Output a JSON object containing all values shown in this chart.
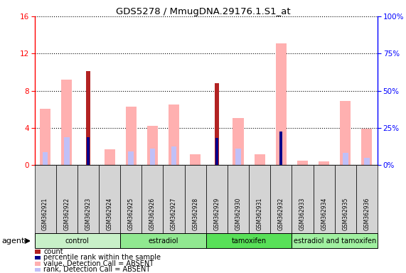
{
  "title": "GDS5278 / MmugDNA.29176.1.S1_at",
  "samples": [
    "GSM362921",
    "GSM362922",
    "GSM362923",
    "GSM362924",
    "GSM362925",
    "GSM362926",
    "GSM362927",
    "GSM362928",
    "GSM362929",
    "GSM362930",
    "GSM362931",
    "GSM362932",
    "GSM362933",
    "GSM362934",
    "GSM362935",
    "GSM362936"
  ],
  "count": [
    0,
    0,
    10.1,
    0,
    0,
    0,
    0,
    0,
    8.8,
    0,
    0,
    0,
    0,
    0,
    0,
    0
  ],
  "percentile": [
    0,
    0,
    3.0,
    0,
    0,
    0,
    0,
    0,
    2.9,
    0,
    0,
    3.6,
    0,
    0,
    0,
    0
  ],
  "value_absent": [
    6.1,
    9.2,
    0,
    1.7,
    6.3,
    4.2,
    6.5,
    1.2,
    0,
    5.1,
    1.2,
    13.1,
    0.5,
    0.4,
    6.9,
    3.9
  ],
  "rank_absent": [
    1.4,
    3.0,
    0,
    0,
    1.5,
    1.8,
    2.0,
    0,
    0,
    1.8,
    0,
    0,
    0,
    0,
    1.3,
    0.8
  ],
  "groups": [
    {
      "label": "control",
      "start": 0,
      "end": 4,
      "color": "#c8f0c8"
    },
    {
      "label": "estradiol",
      "start": 4,
      "end": 8,
      "color": "#90e890"
    },
    {
      "label": "tamoxifen",
      "start": 8,
      "end": 12,
      "color": "#58e058"
    },
    {
      "label": "estradiol and tamoxifen",
      "start": 12,
      "end": 16,
      "color": "#a0f0a0"
    }
  ],
  "ylim_left": [
    0,
    16
  ],
  "ylim_right": [
    0,
    100
  ],
  "yticks_left": [
    0,
    4,
    8,
    12,
    16
  ],
  "yticks_right": [
    0,
    25,
    50,
    75,
    100
  ],
  "bar_width": 0.5,
  "color_count": "#b22222",
  "color_percentile": "#00008b",
  "color_value_absent": "#ffb0b0",
  "color_rank_absent": "#c0c0f8",
  "legend_items": [
    {
      "color": "#b22222",
      "label": "count"
    },
    {
      "color": "#00008b",
      "label": "percentile rank within the sample"
    },
    {
      "color": "#ffb0b0",
      "label": "value, Detection Call = ABSENT"
    },
    {
      "color": "#c0c0f8",
      "label": "rank, Detection Call = ABSENT"
    }
  ],
  "agent_label": "agent"
}
